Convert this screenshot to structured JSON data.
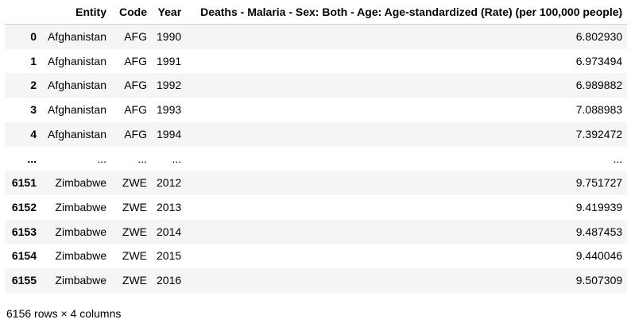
{
  "table": {
    "columns": [
      "",
      "Entity",
      "Code",
      "Year",
      "Deaths - Malaria - Sex: Both - Age: Age-standardized (Rate) (per 100,000 people)"
    ],
    "rows": [
      {
        "index": "0",
        "entity": "Afghanistan",
        "code": "AFG",
        "year": "1990",
        "rate": "6.802930"
      },
      {
        "index": "1",
        "entity": "Afghanistan",
        "code": "AFG",
        "year": "1991",
        "rate": "6.973494"
      },
      {
        "index": "2",
        "entity": "Afghanistan",
        "code": "AFG",
        "year": "1992",
        "rate": "6.989882"
      },
      {
        "index": "3",
        "entity": "Afghanistan",
        "code": "AFG",
        "year": "1993",
        "rate": "7.088983"
      },
      {
        "index": "4",
        "entity": "Afghanistan",
        "code": "AFG",
        "year": "1994",
        "rate": "7.392472"
      },
      {
        "index": "...",
        "entity": "...",
        "code": "...",
        "year": "...",
        "rate": "..."
      },
      {
        "index": "6151",
        "entity": "Zimbabwe",
        "code": "ZWE",
        "year": "2012",
        "rate": "9.751727"
      },
      {
        "index": "6152",
        "entity": "Zimbabwe",
        "code": "ZWE",
        "year": "2013",
        "rate": "9.419939"
      },
      {
        "index": "6153",
        "entity": "Zimbabwe",
        "code": "ZWE",
        "year": "2014",
        "rate": "9.487453"
      },
      {
        "index": "6154",
        "entity": "Zimbabwe",
        "code": "ZWE",
        "year": "2015",
        "rate": "9.440046"
      },
      {
        "index": "6155",
        "entity": "Zimbabwe",
        "code": "ZWE",
        "year": "2016",
        "rate": "9.507309"
      }
    ]
  },
  "shape_text": "6156 rows × 4 columns",
  "colors": {
    "stripe": "#f5f5f5",
    "header_rule": "#cfcfcf",
    "text": "#000000"
  }
}
